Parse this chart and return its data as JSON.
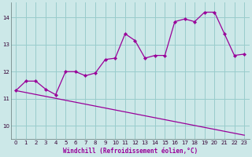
{
  "xlabel": "Windchill (Refroidissement éolien,°C)",
  "bg_color": "#cce8e8",
  "grid_color": "#99cccc",
  "line_color": "#990099",
  "xlim": [
    -0.5,
    23.5
  ],
  "ylim": [
    9.5,
    14.55
  ],
  "xticks": [
    0,
    1,
    2,
    3,
    4,
    5,
    6,
    7,
    8,
    9,
    10,
    11,
    12,
    13,
    14,
    15,
    16,
    17,
    18,
    19,
    20,
    21,
    22,
    23
  ],
  "yticks": [
    10,
    11,
    12,
    13,
    14
  ],
  "line1_x": [
    0,
    1,
    2,
    3,
    4,
    5,
    6,
    7,
    8,
    9,
    10,
    11,
    12,
    13,
    14,
    15,
    16,
    17,
    18,
    19,
    20,
    21,
    22,
    23
  ],
  "line1_y": [
    11.3,
    11.65,
    11.65,
    11.35,
    11.15,
    12.0,
    12.0,
    11.85,
    11.95,
    12.45,
    12.5,
    13.4,
    13.15,
    12.5,
    12.6,
    12.6,
    13.85,
    13.95,
    13.85,
    14.2,
    14.2,
    13.4,
    12.6,
    12.65
  ],
  "line2_x": [
    0,
    23
  ],
  "line2_y": [
    11.3,
    9.65
  ]
}
